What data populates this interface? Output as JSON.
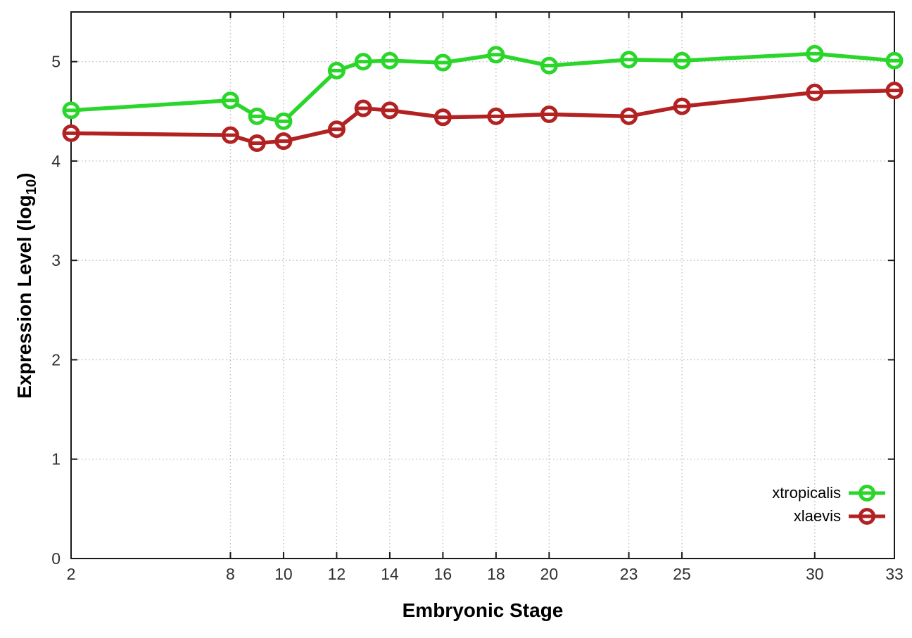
{
  "chart_data": {
    "type": "line",
    "title": "",
    "xlabel": "Embryonic Stage",
    "ylabel": "Expression Level (log10)",
    "ylabel_parts": {
      "main": "Expression Level (log",
      "sub": "10",
      "close": ")"
    },
    "x": [
      2,
      8,
      9,
      10,
      12,
      13,
      14,
      16,
      18,
      20,
      23,
      25,
      30,
      33
    ],
    "series": [
      {
        "name": "xtropicalis",
        "color": "#2ad62a",
        "values": [
          4.51,
          4.61,
          4.45,
          4.4,
          4.91,
          5.0,
          5.01,
          4.99,
          5.07,
          4.96,
          5.02,
          5.01,
          5.08,
          5.01
        ]
      },
      {
        "name": "xlaevis",
        "color": "#b22222",
        "values": [
          4.28,
          4.26,
          4.18,
          4.2,
          4.32,
          4.53,
          4.51,
          4.44,
          4.45,
          4.47,
          4.45,
          4.55,
          4.69,
          4.71
        ]
      }
    ],
    "xticks": [
      2,
      8,
      10,
      12,
      14,
      16,
      18,
      20,
      23,
      25,
      30,
      33
    ],
    "yticks": [
      0,
      1,
      2,
      3,
      4,
      5
    ],
    "xlim": [
      2,
      33
    ],
    "ylim": [
      0,
      5.5
    ],
    "grid": true,
    "legend_position": "inside right bottom",
    "marker": "open-circle",
    "colors": {
      "border": "#1a1a1a",
      "grid": "#bcbcbc",
      "tick_label": "#303030",
      "background": "#ffffff"
    }
  }
}
